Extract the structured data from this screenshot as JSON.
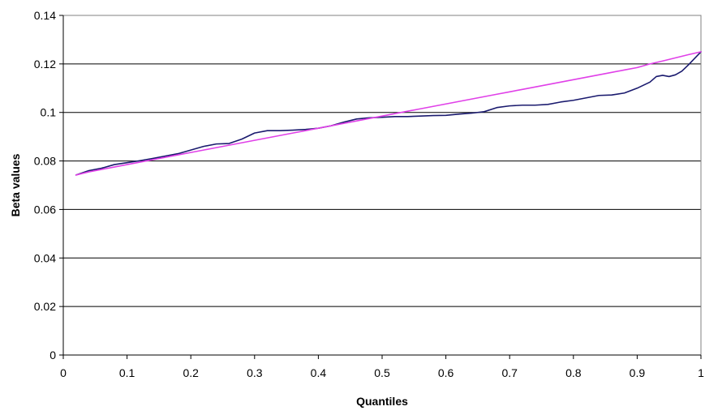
{
  "chart_data": {
    "type": "line",
    "title": "",
    "xlabel": "Quantiles",
    "ylabel": "Beta values",
    "xlim": [
      0,
      1
    ],
    "ylim": [
      0,
      0.14
    ],
    "x_ticks": [
      "0",
      "0.1",
      "0.2",
      "0.3",
      "0.4",
      "0.5",
      "0.6",
      "0.7",
      "0.8",
      "0.9",
      "1"
    ],
    "y_ticks": [
      "0",
      "0.02",
      "0.04",
      "0.06",
      "0.08",
      "0.1",
      "0.12",
      "0.14"
    ],
    "grid": "horizontal",
    "legend": "none",
    "series": [
      {
        "color": "#1a1a6e",
        "x": [
          0.02,
          0.04,
          0.06,
          0.08,
          0.1,
          0.12,
          0.14,
          0.16,
          0.18,
          0.2,
          0.22,
          0.24,
          0.26,
          0.28,
          0.3,
          0.32,
          0.34,
          0.36,
          0.38,
          0.4,
          0.42,
          0.44,
          0.46,
          0.48,
          0.5,
          0.52,
          0.54,
          0.56,
          0.58,
          0.6,
          0.62,
          0.64,
          0.66,
          0.68,
          0.7,
          0.72,
          0.74,
          0.76,
          0.78,
          0.8,
          0.82,
          0.84,
          0.86,
          0.88,
          0.9,
          0.92,
          0.93,
          0.94,
          0.95,
          0.96,
          0.97,
          0.98,
          1.0
        ],
        "y": [
          0.0742,
          0.076,
          0.077,
          0.0785,
          0.0793,
          0.0801,
          0.081,
          0.082,
          0.083,
          0.0845,
          0.086,
          0.087,
          0.0872,
          0.089,
          0.0915,
          0.0925,
          0.0925,
          0.0927,
          0.093,
          0.0935,
          0.0945,
          0.096,
          0.0973,
          0.0978,
          0.098,
          0.0983,
          0.0983,
          0.0985,
          0.0987,
          0.0988,
          0.0993,
          0.0997,
          0.1003,
          0.102,
          0.1027,
          0.103,
          0.103,
          0.1033,
          0.1043,
          0.105,
          0.106,
          0.107,
          0.1072,
          0.108,
          0.11,
          0.1125,
          0.1148,
          0.1153,
          0.1148,
          0.1155,
          0.117,
          0.1195,
          0.125
        ]
      },
      {
        "color": "#e040e8",
        "x": [
          0.02,
          0.04,
          0.06,
          0.08,
          0.1,
          0.12,
          0.14,
          0.16,
          0.18,
          0.2,
          0.22,
          0.24,
          0.26,
          0.28,
          0.3,
          0.32,
          0.34,
          0.36,
          0.38,
          0.4,
          0.42,
          0.44,
          0.46,
          0.48,
          0.5,
          0.52,
          0.54,
          0.56,
          0.58,
          0.6,
          0.62,
          0.64,
          0.66,
          0.68,
          0.7,
          0.72,
          0.74,
          0.76,
          0.78,
          0.8,
          0.82,
          0.84,
          0.86,
          0.88,
          0.9,
          0.92,
          0.94,
          0.96,
          0.98,
          1.0
        ],
        "y": [
          0.0742,
          0.0755,
          0.0765,
          0.0775,
          0.0785,
          0.0795,
          0.0805,
          0.0815,
          0.0825,
          0.0835,
          0.0845,
          0.0855,
          0.0865,
          0.0875,
          0.0885,
          0.0895,
          0.0905,
          0.0915,
          0.0925,
          0.0935,
          0.0945,
          0.0955,
          0.0965,
          0.0975,
          0.0985,
          0.0995,
          0.1005,
          0.1015,
          0.1025,
          0.1035,
          0.1045,
          0.1055,
          0.1065,
          0.1075,
          0.1085,
          0.1095,
          0.1105,
          0.1115,
          0.1125,
          0.1135,
          0.1145,
          0.1155,
          0.1165,
          0.1175,
          0.1185,
          0.12,
          0.1212,
          0.1225,
          0.1238,
          0.125
        ]
      }
    ]
  }
}
